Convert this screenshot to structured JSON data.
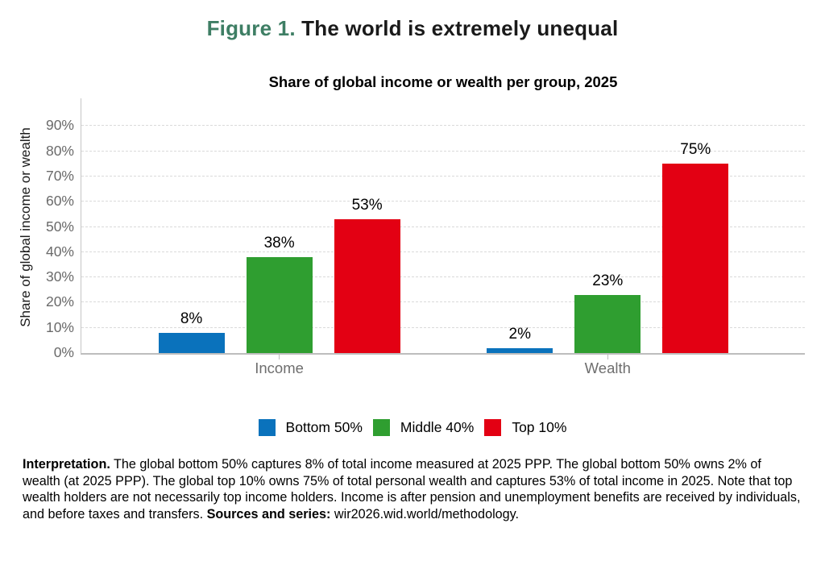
{
  "figure": {
    "label": "Figure 1.",
    "title": " The world is extremely unequal"
  },
  "chart_data": {
    "type": "bar",
    "title": "Share of global income or wealth per group, 2025",
    "categories": [
      "Income",
      "Wealth"
    ],
    "series": [
      {
        "name": "Bottom 50%",
        "color": "#0a72bc",
        "values": [
          8,
          2
        ]
      },
      {
        "name": "Middle 40%",
        "color": "#2f9e30",
        "values": [
          38,
          23
        ]
      },
      {
        "name": "Top 10%",
        "color": "#e30013",
        "values": [
          53,
          75
        ]
      }
    ],
    "bar_labels": [
      [
        "8%",
        "2%"
      ],
      [
        "38%",
        "23%"
      ],
      [
        "53%",
        "75%"
      ]
    ],
    "xlabel": "",
    "ylabel": "Share of global income or wealth",
    "ylim": [
      0,
      101
    ],
    "yticks": [
      0,
      10,
      20,
      30,
      40,
      50,
      60,
      70,
      80,
      90
    ],
    "ytick_suffix": "%",
    "grid": "horizontal-dashed",
    "legend_position": "bottom"
  },
  "notes": {
    "interpretation_label": "Interpretation.",
    "interpretation_text": " The global bottom 50% captures 8% of total income measured at 2025 PPP. The global bottom 50% owns 2% of wealth (at 2025 PPP). The global top 10% owns 75% of total personal wealth and captures 53% of total income in 2025. Note that top wealth holders are not necessarily top income holders. Income is after pension and unemployment benefits are received by individuals, and before taxes and transfers. ",
    "sources_label": "Sources and series:",
    "sources_text": " wir2026.wid.world/methodology."
  },
  "colors": {
    "figure_label_green": "#3e7e64",
    "axis_text_gray": "#6a6a6a",
    "gridline_gray": "#dadada",
    "axis_line_gray": "#c6c6c6",
    "bottom_50_blue": "#0a72bc",
    "middle_40_green": "#2f9e30",
    "top_10_red": "#e30013"
  }
}
